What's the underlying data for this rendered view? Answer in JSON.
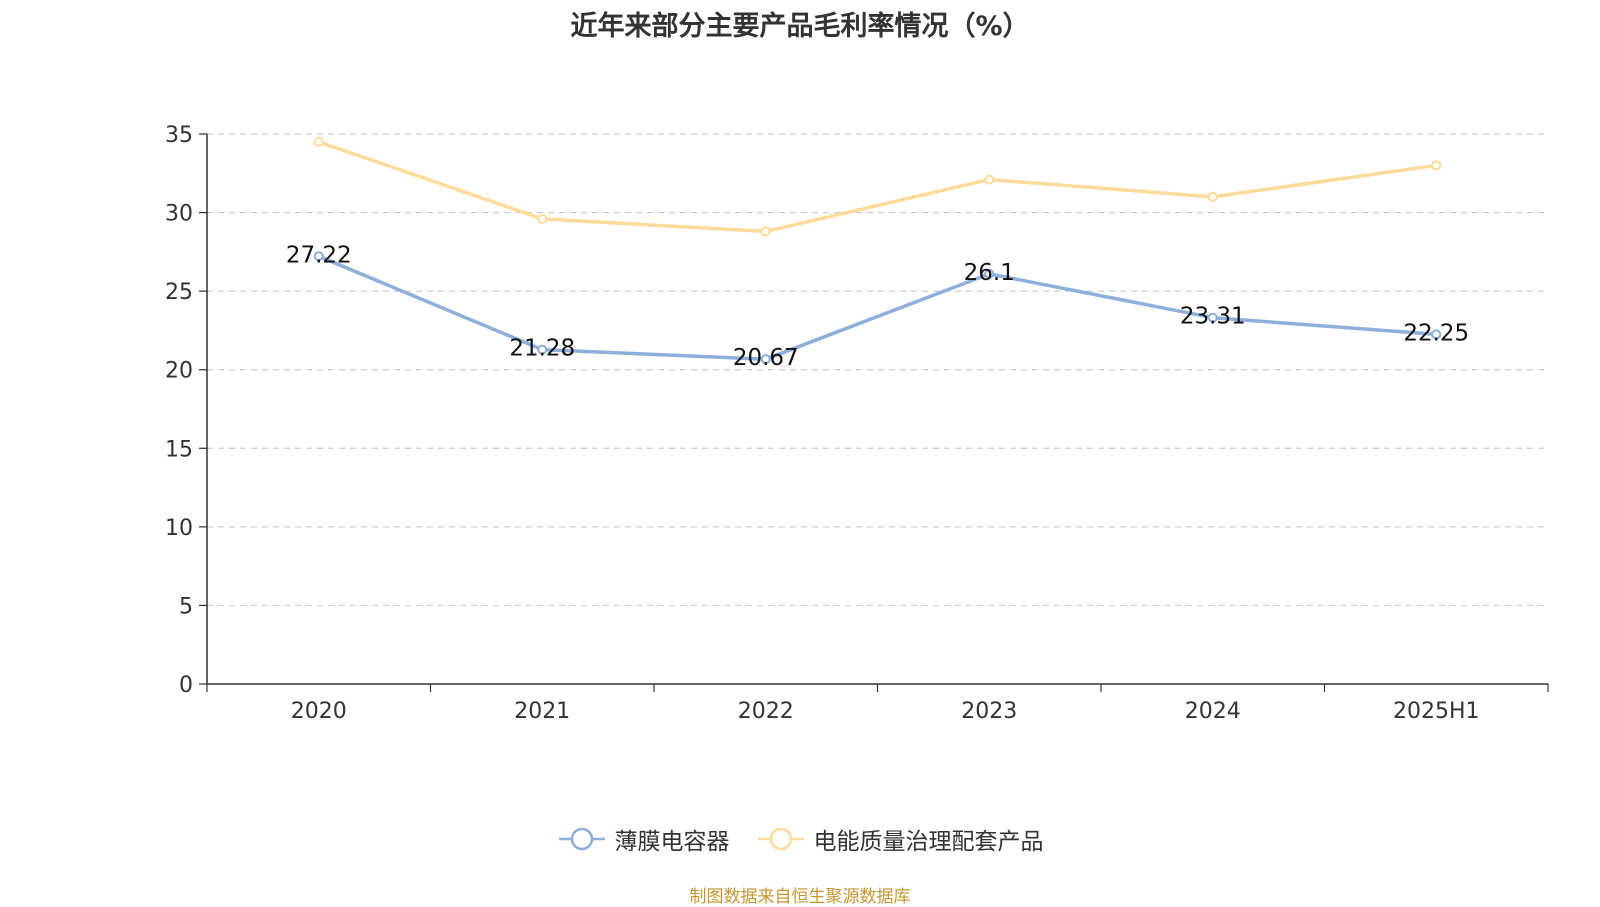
{
  "title": "近年来部分主要产品毛利率情况（%）",
  "source": "制图数据来自恒生聚源数据库",
  "chart_data": {
    "type": "line",
    "title": "近年来部分主要产品毛利率情况（%）",
    "categories": [
      "2020",
      "2021",
      "2022",
      "2023",
      "2024",
      "2025H1"
    ],
    "ylim": [
      0,
      35
    ],
    "yticks": [
      0,
      5,
      10,
      15,
      20,
      25,
      30,
      35
    ],
    "grid": true,
    "legend_position": "bottom",
    "series": [
      {
        "name": "薄膜电容器",
        "color": "#8eaedb",
        "values": [
          27.22,
          21.28,
          20.67,
          26.1,
          23.31,
          22.25
        ],
        "labels": [
          "27.22",
          "21.28",
          "20.67",
          "26.1",
          "23.31",
          "22.25"
        ],
        "show_labels": true
      },
      {
        "name": "电能质量治理配套产品",
        "color": "#fddb9a",
        "values": [
          34.5,
          29.6,
          28.8,
          32.1,
          31.0,
          33.0
        ],
        "show_labels": false
      }
    ]
  }
}
